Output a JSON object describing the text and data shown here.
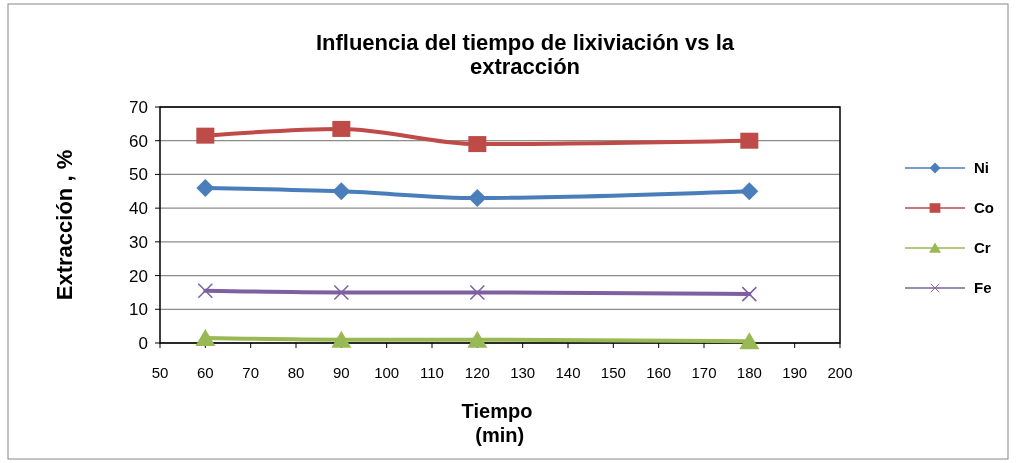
{
  "chart_data": {
    "type": "line",
    "title": "Influencia del tiempo de lixiviación vs  la extracción",
    "xlabel": "Tiempo\n (min)",
    "ylabel": "Extracción , %",
    "x": [
      60,
      90,
      120,
      180
    ],
    "series": [
      {
        "name": "Ni",
        "color": "#4a7ebb",
        "marker": "diamond",
        "values": [
          46,
          45,
          43,
          45
        ]
      },
      {
        "name": "Co",
        "color": "#be4b48",
        "marker": "square",
        "values": [
          61.5,
          63.5,
          59,
          60
        ]
      },
      {
        "name": "Cr",
        "color": "#98b954",
        "marker": "triangle",
        "values": [
          1.5,
          1,
          1,
          0.5
        ]
      },
      {
        "name": "Fe",
        "color": "#7d60a0",
        "marker": "cross",
        "values": [
          15.5,
          15,
          15,
          14.5
        ]
      }
    ],
    "xlim": [
      50,
      200
    ],
    "xticks": [
      50,
      60,
      70,
      80,
      90,
      100,
      110,
      120,
      130,
      140,
      150,
      160,
      170,
      180,
      190,
      200
    ],
    "ylim": [
      0,
      70
    ],
    "yticks": [
      0,
      10,
      20,
      30,
      40,
      50,
      60,
      70
    ],
    "grid": "y",
    "legend": "right",
    "line_style": "solid"
  }
}
